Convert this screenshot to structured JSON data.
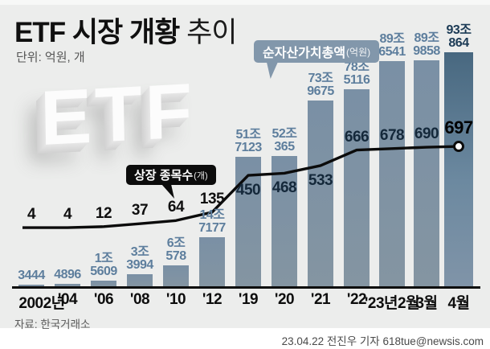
{
  "header": {
    "title_strong": "ETF 시장 개황",
    "title_light": "추이",
    "unit": "단위: 억원, 개"
  },
  "logo": {
    "text": "ETF"
  },
  "badges": {
    "nav_total": {
      "label": "순자산가치총액",
      "unit": "(억원)"
    },
    "listed_count": {
      "label": "상장 종목수",
      "unit": "(개)"
    }
  },
  "footer": {
    "source": "자료: 한국거래소",
    "credit": "23.04.22 전진우 기자 618tue@newsis.com"
  },
  "colors": {
    "bar": "#7e93a6",
    "bar_highlight_top": "#486880",
    "bar_label": "#5d7e9d",
    "bar_label_highlight": "#1b3a55",
    "line": "#0b0b0b",
    "badge_nav_bg": "#8297ab",
    "badge_count_bg": "#0c0c0c",
    "background": "#ecedec"
  },
  "chart_data": {
    "type": "bar",
    "title": "ETF 시장 개황 추이",
    "unit_note": "단위: 억원, 개",
    "categories": [
      "2002년",
      "'04",
      "'06",
      "'08",
      "'10",
      "'12",
      "'19",
      "'20",
      "'21",
      "'22",
      "'23년2월",
      "3월",
      "4월"
    ],
    "series": [
      {
        "name": "순자산가치총액",
        "unit": "억원",
        "type": "bar",
        "values": [
          3444,
          4896,
          15609,
          33994,
          60578,
          147177,
          517123,
          520365,
          739675,
          785116,
          896541,
          899858,
          930864
        ],
        "value_labels": [
          "3444",
          "4896",
          "1조|5609",
          "3조|3994",
          "6조|578",
          "14조|7177",
          "51조|7123",
          "52조|365",
          "73조|9675",
          "78조|5116",
          "89조|6541",
          "89조|9858",
          "93조|864"
        ]
      },
      {
        "name": "상장 종목수",
        "unit": "개",
        "type": "line",
        "values": [
          4,
          4,
          12,
          37,
          64,
          135,
          450,
          468,
          533,
          666,
          678,
          690,
          697
        ]
      }
    ],
    "highlight_last_bar": true,
    "legend_position": "annotated-callouts",
    "grid": false
  }
}
